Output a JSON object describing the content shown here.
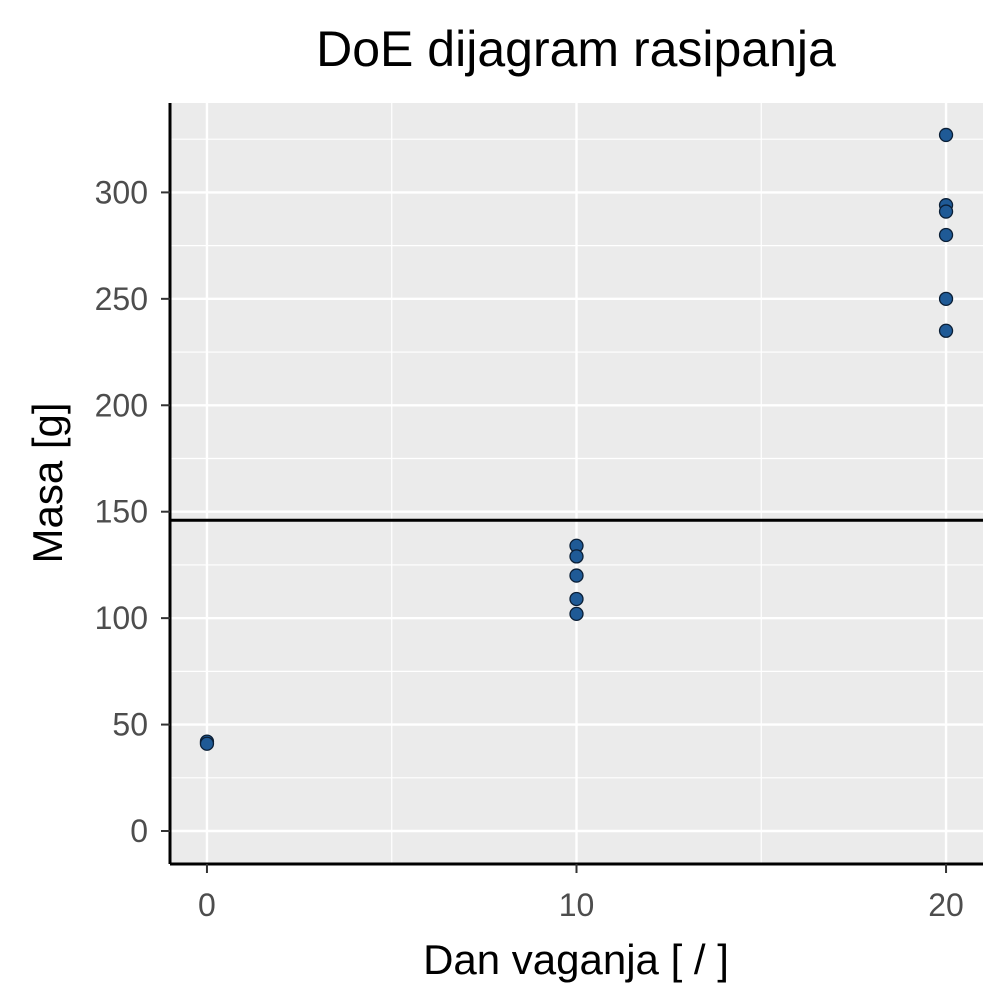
{
  "chart_data": {
    "type": "scatter",
    "title": "DoE dijagram rasipanja",
    "xlabel": "Dan vaganja [ / ]",
    "ylabel": "Masa [g]",
    "xlim": [
      -1,
      21
    ],
    "ylim": [
      -15.5,
      342
    ],
    "x_ticks": [
      0,
      10,
      20
    ],
    "y_ticks": [
      0,
      50,
      100,
      150,
      200,
      250,
      300
    ],
    "grid": true,
    "reference_line": {
      "orientation": "horizontal",
      "y": 146
    },
    "points": [
      {
        "x": 0,
        "y": 42
      },
      {
        "x": 0,
        "y": 41
      },
      {
        "x": 10,
        "y": 134
      },
      {
        "x": 10,
        "y": 129
      },
      {
        "x": 10,
        "y": 120
      },
      {
        "x": 10,
        "y": 109
      },
      {
        "x": 10,
        "y": 102
      },
      {
        "x": 20,
        "y": 327
      },
      {
        "x": 20,
        "y": 294
      },
      {
        "x": 20,
        "y": 291
      },
      {
        "x": 20,
        "y": 280
      },
      {
        "x": 20,
        "y": 250
      },
      {
        "x": 20,
        "y": 235
      }
    ],
    "colors": {
      "panel": "#ebebeb",
      "grid": "#ffffff",
      "point_fill": "#1f5a96",
      "point_stroke": "#0b1f36",
      "axis": "#000000",
      "reference_line": "#000000"
    }
  }
}
